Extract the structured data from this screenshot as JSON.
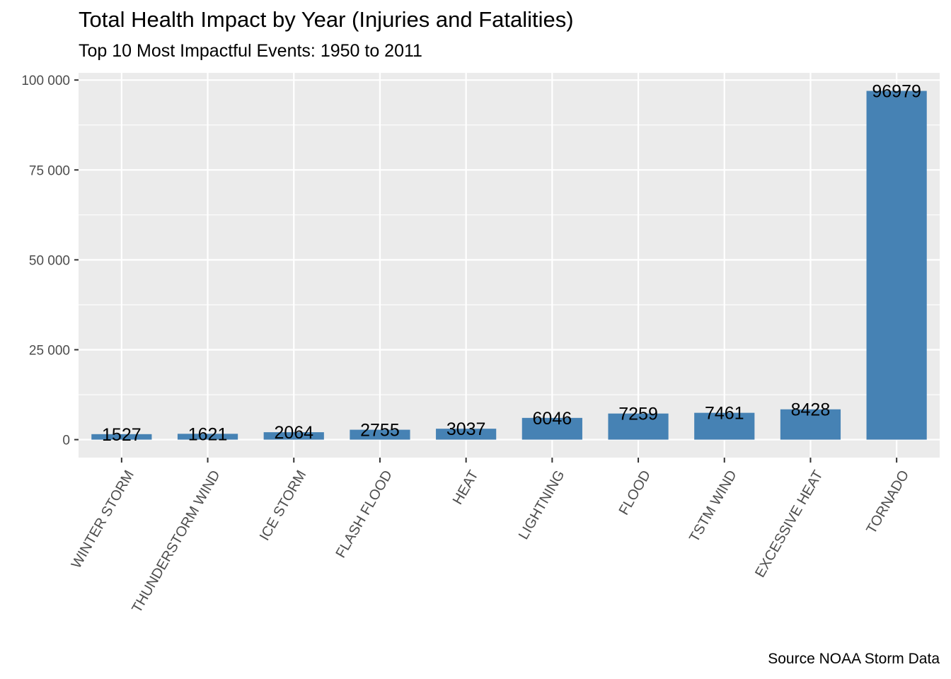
{
  "title": "Total Health Impact by Year (Injuries and Fatalities)",
  "subtitle": "Top 10 Most Impactful Events: 1950 to 2011",
  "caption": "Source NOAA Storm Data",
  "colors": {
    "bar": "#4682b4",
    "panel": "#ebebeb",
    "grid": "#ffffff",
    "axis_text": "#4d4d4d",
    "tick": "#333333",
    "label": "#000000"
  },
  "chart_data": {
    "type": "bar",
    "categories": [
      "WINTER STORM",
      "THUNDERSTORM WIND",
      "ICE STORM",
      "FLASH FLOOD",
      "HEAT",
      "LIGHTNING",
      "FLOOD",
      "TSTM WIND",
      "EXCESSIVE HEAT",
      "TORNADO"
    ],
    "values": [
      1527,
      1621,
      2064,
      2755,
      3037,
      6046,
      7259,
      7461,
      8428,
      96979
    ],
    "data_labels": [
      "1527",
      "1621",
      "2064",
      "2755",
      "3037",
      "6046",
      "7259",
      "7461",
      "8428",
      "96979"
    ],
    "y_ticks": [
      0,
      25000,
      50000,
      75000,
      100000
    ],
    "y_tick_labels": [
      "0",
      "25 000",
      "50 000",
      "75 000",
      "100 000"
    ],
    "ylim": [
      -5000,
      102000
    ],
    "xlabel": "",
    "ylabel": "",
    "grid": true,
    "legend": "none"
  }
}
